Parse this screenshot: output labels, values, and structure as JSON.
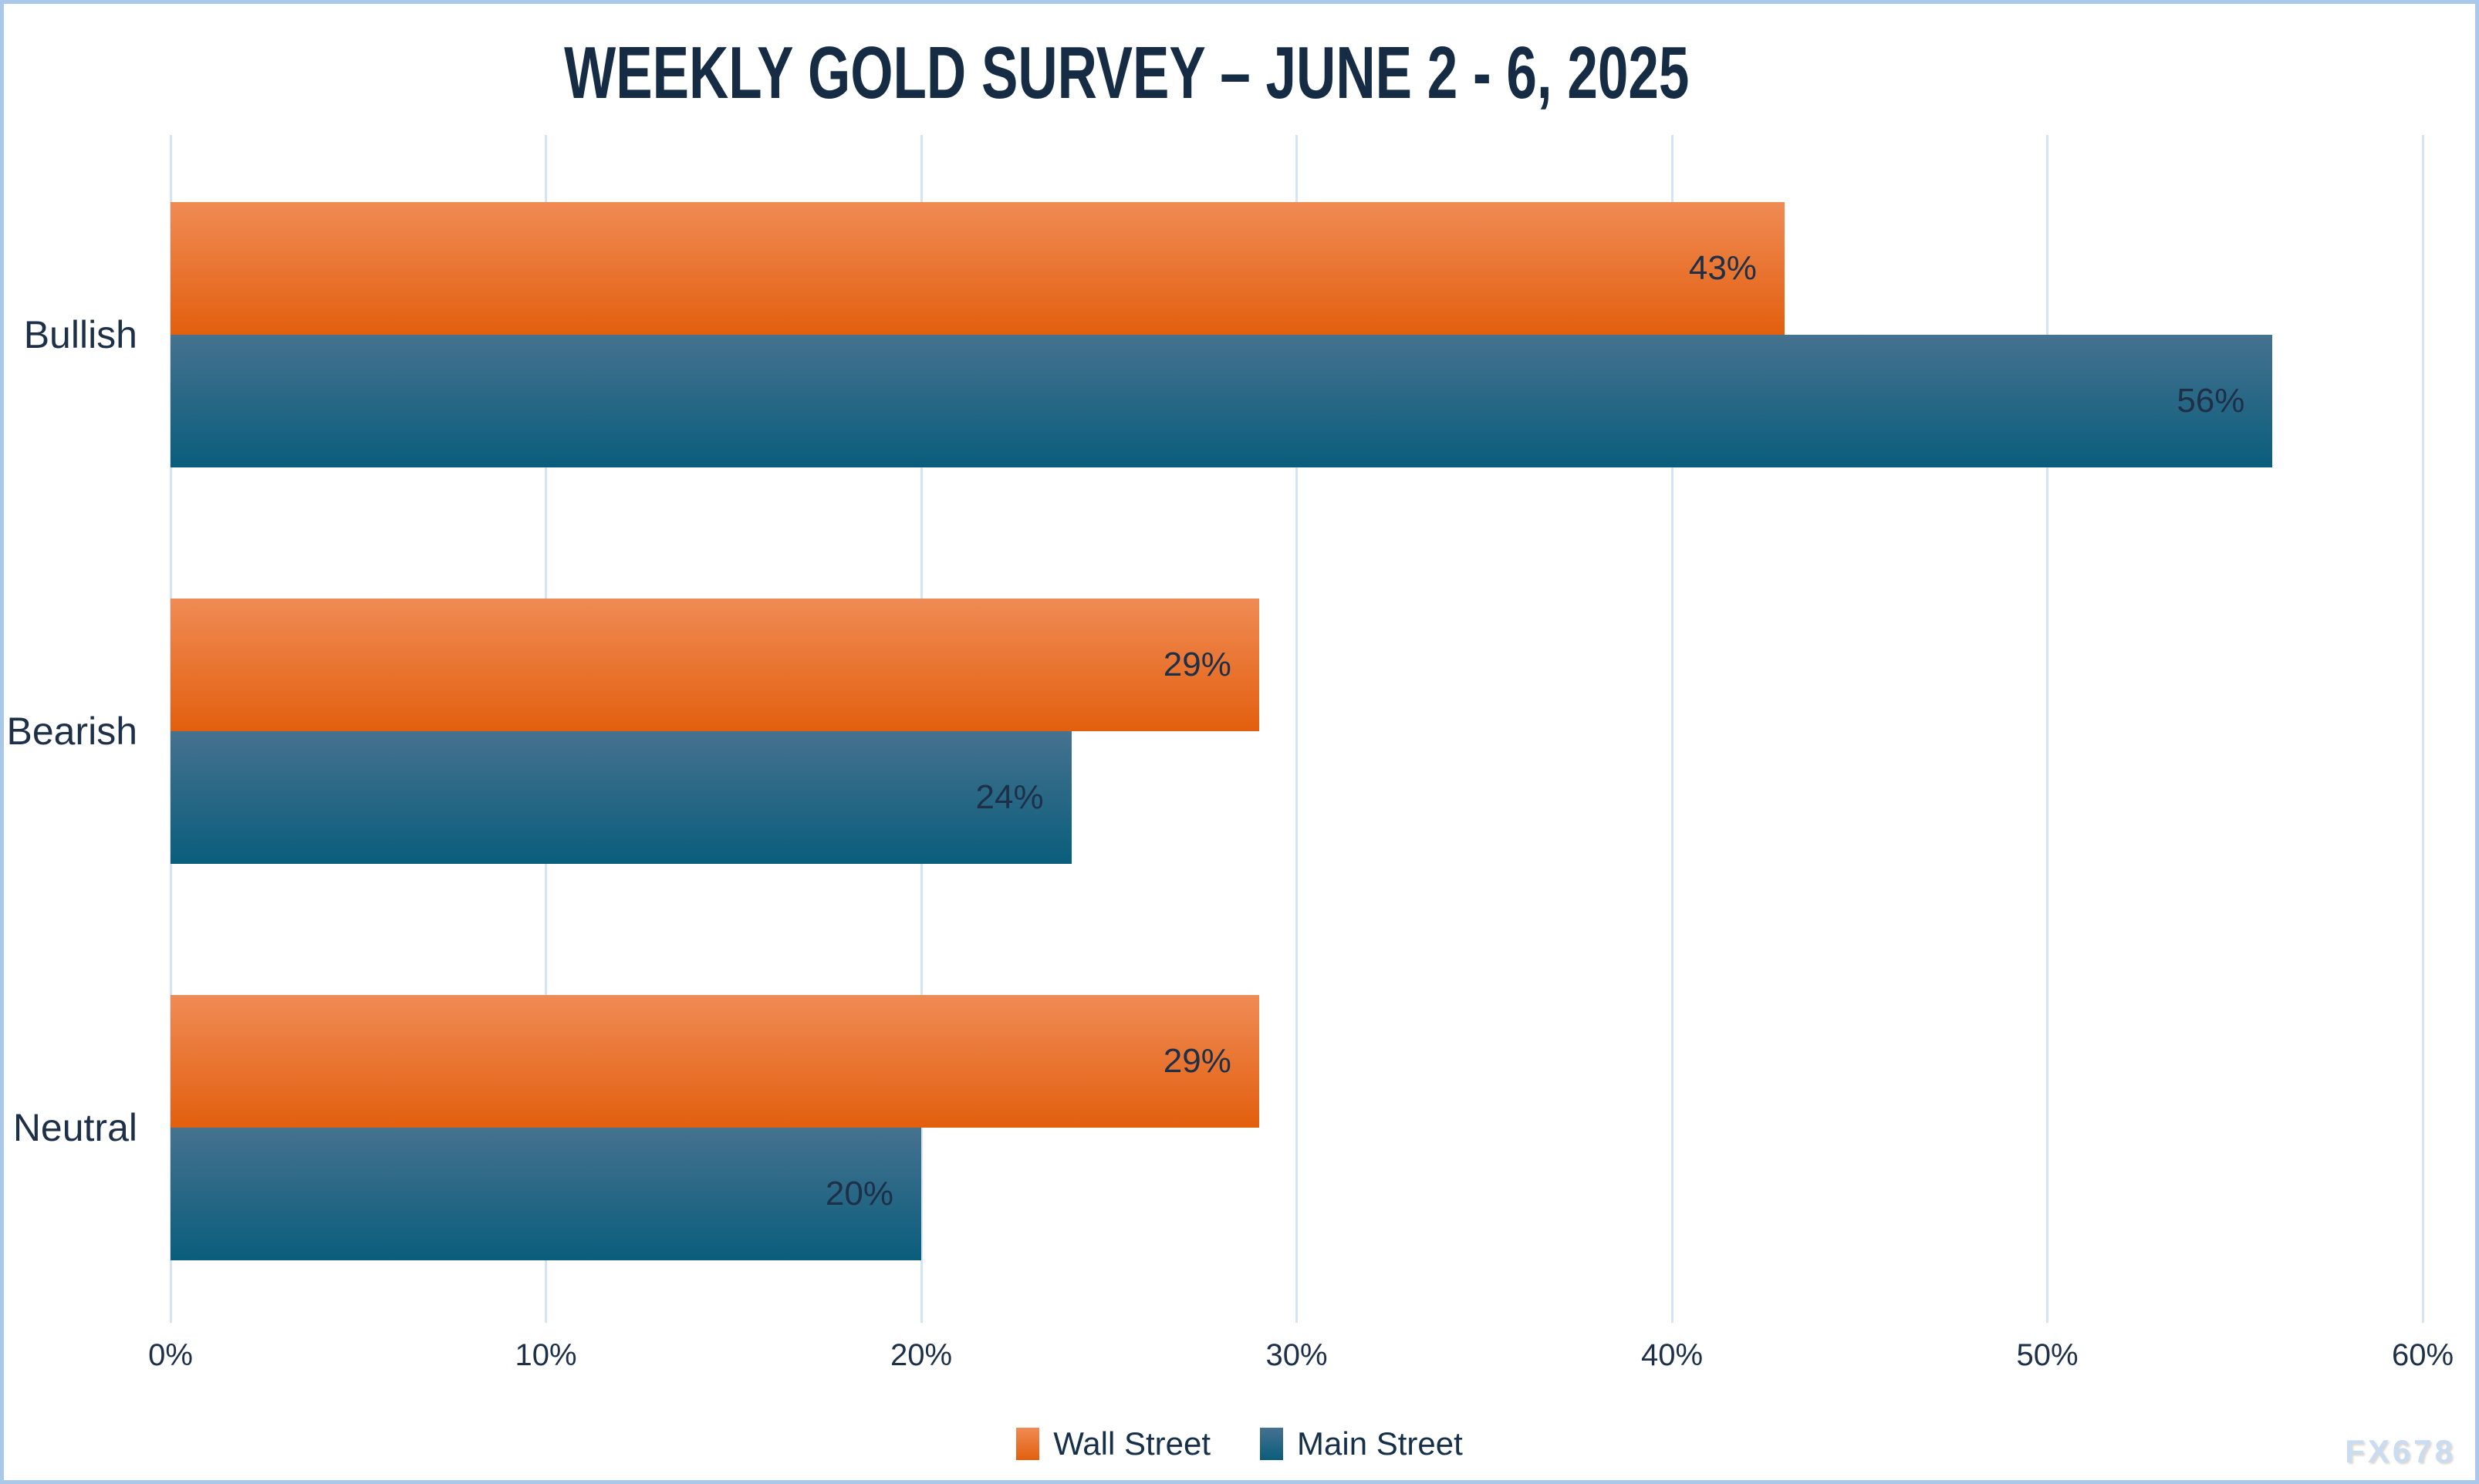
{
  "watermark": "FX678",
  "chart_data": {
    "type": "bar",
    "orientation": "horizontal",
    "title": "WEEKLY GOLD SURVEY – JUNE 2 - 6, 2025",
    "categories": [
      "Bullish",
      "Bearish",
      "Neutral"
    ],
    "series": [
      {
        "name": "Wall Street",
        "values": [
          43,
          29,
          29
        ],
        "color": "#ED7325",
        "color_top": "#F08B55",
        "color_bottom": "#E25F0E"
      },
      {
        "name": "Main Street",
        "values": [
          56,
          24,
          20
        ],
        "color": "#19617F",
        "color_top": "#45728F",
        "color_bottom": "#0A5D7C"
      }
    ],
    "xlim": [
      0,
      60
    ],
    "x_ticks": [
      "0%",
      "10%",
      "20%",
      "30%",
      "40%",
      "50%",
      "60%"
    ],
    "value_suffix": "%",
    "value_label_position": "inside-end",
    "grid": "vertical-gridlines-on",
    "legend_position": "bottom-center",
    "colors": {
      "background": "#FFFFFF",
      "page_border": "#AAC9EA",
      "gridline": "#D5E4F4",
      "text": "#1E3048",
      "title_text": "#152C44",
      "watermark_text": "#C9DCF1"
    }
  }
}
